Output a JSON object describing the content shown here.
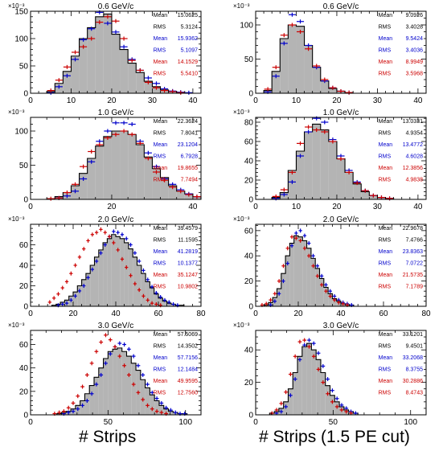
{
  "chart_data": [
    {
      "type": "histogram",
      "title": "0.6 GeV/c",
      "exponent": "×10⁻³",
      "xlim": [
        0,
        42
      ],
      "ylim": [
        0,
        150
      ],
      "xticks": [
        0,
        10,
        20,
        30,
        40
      ],
      "yticks": [
        0,
        50,
        100,
        150
      ],
      "binwidth": 2,
      "x": [
        1,
        3,
        5,
        7,
        9,
        11,
        13,
        15,
        17,
        19,
        21,
        23,
        25,
        27,
        29,
        31,
        33,
        35,
        37,
        39,
        41
      ],
      "hist": [
        0,
        0,
        3,
        18,
        40,
        68,
        100,
        120,
        140,
        145,
        108,
        80,
        55,
        38,
        22,
        12,
        6,
        3,
        1,
        0,
        0
      ],
      "blue": [
        0,
        0,
        1,
        12,
        32,
        62,
        98,
        118,
        148,
        128,
        112,
        85,
        62,
        42,
        28,
        18,
        8,
        4,
        2,
        1,
        0
      ],
      "red": [
        0,
        0,
        5,
        24,
        48,
        75,
        85,
        100,
        130,
        140,
        132,
        100,
        60,
        42,
        20,
        10,
        5,
        3,
        1,
        0,
        0
      ],
      "stats": [
        {
          "label": "Mean",
          "value": "15.0625",
          "color": "#000000"
        },
        {
          "label": "RMS",
          "value": "5.3124",
          "color": "#000000"
        },
        {
          "label": "Mean",
          "value": "15.9362",
          "color": "#0000cc"
        },
        {
          "label": "RMS",
          "value": "5.1097",
          "color": "#0000cc"
        },
        {
          "label": "Mean",
          "value": "14.1529",
          "color": "#cc0000"
        },
        {
          "label": "RMS",
          "value": "5.5410",
          "color": "#cc0000"
        }
      ]
    },
    {
      "type": "histogram",
      "title": "0.6 GeV/c",
      "exponent": "×10⁻³",
      "xlim": [
        0,
        42
      ],
      "ylim": [
        0,
        120
      ],
      "xticks": [
        0,
        10,
        20,
        30,
        40
      ],
      "yticks": [
        0,
        50,
        100
      ],
      "binwidth": 2,
      "x": [
        1,
        3,
        5,
        7,
        9,
        11,
        13,
        15,
        17,
        19,
        21,
        23,
        25,
        27,
        29,
        31,
        33,
        35,
        37,
        39,
        41
      ],
      "hist": [
        0,
        4,
        32,
        80,
        100,
        98,
        70,
        38,
        18,
        7,
        3,
        1,
        0,
        0,
        0,
        0,
        0,
        0,
        0,
        0,
        0
      ],
      "blue": [
        0,
        2,
        25,
        73,
        115,
        105,
        70,
        38,
        18,
        8,
        3,
        1,
        0,
        0,
        0,
        0,
        0,
        0,
        0,
        0,
        0
      ],
      "red": [
        0,
        6,
        38,
        85,
        100,
        90,
        65,
        40,
        20,
        8,
        3,
        1,
        0,
        0,
        0,
        0,
        0,
        0,
        0,
        0,
        0
      ],
      "stats": [
        {
          "label": "Mean",
          "value": "9.0926",
          "color": "#000000"
        },
        {
          "label": "RMS",
          "value": "3.4028",
          "color": "#000000"
        },
        {
          "label": "Mean",
          "value": "9.5424",
          "color": "#0000cc"
        },
        {
          "label": "RMS",
          "value": "3.4036",
          "color": "#0000cc"
        },
        {
          "label": "Mean",
          "value": "8.9949",
          "color": "#cc0000"
        },
        {
          "label": "RMS",
          "value": "3.5968",
          "color": "#cc0000"
        }
      ]
    },
    {
      "type": "histogram",
      "title": "1.0 GeV/c",
      "exponent": "×10⁻³",
      "xlim": [
        0,
        42
      ],
      "ylim": [
        0,
        120
      ],
      "xticks": [
        0,
        20,
        40
      ],
      "yticks": [
        0,
        50,
        100
      ],
      "binwidth": 2,
      "x": [
        1,
        3,
        5,
        7,
        9,
        11,
        13,
        15,
        17,
        19,
        21,
        23,
        25,
        27,
        29,
        31,
        33,
        35,
        37,
        39,
        41
      ],
      "hist": [
        0,
        0,
        1,
        4,
        10,
        20,
        38,
        60,
        78,
        92,
        100,
        100,
        95,
        80,
        62,
        45,
        32,
        20,
        12,
        8,
        4
      ],
      "blue": [
        0,
        0,
        0,
        2,
        5,
        12,
        30,
        55,
        85,
        100,
        112,
        112,
        110,
        85,
        68,
        48,
        30,
        22,
        14,
        8,
        4
      ],
      "red": [
        0,
        0,
        1,
        2,
        10,
        22,
        48,
        70,
        80,
        90,
        95,
        100,
        95,
        82,
        60,
        40,
        28,
        18,
        12,
        7,
        4
      ],
      "stats": [
        {
          "label": "Mean",
          "value": "22.3624",
          "color": "#000000"
        },
        {
          "label": "RMS",
          "value": "7.8041",
          "color": "#000000"
        },
        {
          "label": "Mean",
          "value": "23.1204",
          "color": "#0000cc"
        },
        {
          "label": "RMS",
          "value": "6.7928",
          "color": "#0000cc"
        },
        {
          "label": "Mean",
          "value": "19.8655",
          "color": "#cc0000"
        },
        {
          "label": "RMS",
          "value": "7.7494",
          "color": "#cc0000"
        }
      ]
    },
    {
      "type": "histogram",
      "title": "1.0 GeV/c",
      "exponent": "×10⁻³",
      "xlim": [
        0,
        42
      ],
      "ylim": [
        0,
        85
      ],
      "xticks": [
        0,
        10,
        20,
        30,
        40
      ],
      "yticks": [
        0,
        20,
        40,
        60,
        80
      ],
      "binwidth": 2,
      "x": [
        1,
        3,
        5,
        7,
        9,
        11,
        13,
        15,
        17,
        19,
        21,
        23,
        25,
        27,
        29,
        31,
        33,
        35,
        37,
        39,
        41
      ],
      "hist": [
        0,
        0,
        2,
        7,
        30,
        50,
        70,
        78,
        72,
        60,
        42,
        28,
        16,
        8,
        4,
        2,
        1,
        0,
        0,
        0,
        0
      ],
      "blue": [
        0,
        0,
        1,
        5,
        18,
        45,
        70,
        84,
        80,
        62,
        45,
        30,
        18,
        9,
        4,
        2,
        1,
        0,
        0,
        0,
        0
      ],
      "red": [
        0,
        0,
        3,
        10,
        28,
        58,
        75,
        72,
        70,
        60,
        42,
        28,
        17,
        9,
        4,
        2,
        1,
        0,
        0,
        0,
        0
      ],
      "stats": [
        {
          "label": "Mean",
          "value": "13.0331",
          "color": "#000000"
        },
        {
          "label": "RMS",
          "value": "4.9354",
          "color": "#000000"
        },
        {
          "label": "Mean",
          "value": "13.4772",
          "color": "#0000cc"
        },
        {
          "label": "RMS",
          "value": "4.6028",
          "color": "#0000cc"
        },
        {
          "label": "Mean",
          "value": "12.3856",
          "color": "#cc0000"
        },
        {
          "label": "RMS",
          "value": "4.9838",
          "color": "#cc0000"
        }
      ]
    },
    {
      "type": "histogram",
      "title": "2.0 GeV/c",
      "exponent": "×10⁻³",
      "xlim": [
        0,
        80
      ],
      "ylim": [
        0,
        80
      ],
      "xticks": [
        0,
        20,
        40,
        60,
        80
      ],
      "yticks": [
        0,
        20,
        40,
        60
      ],
      "binwidth": 2,
      "x": [
        9,
        11,
        13,
        15,
        17,
        19,
        21,
        23,
        25,
        27,
        29,
        31,
        33,
        35,
        37,
        39,
        41,
        43,
        45,
        47,
        49,
        51,
        53,
        55,
        57,
        59,
        61,
        63,
        65,
        67,
        69,
        71,
        73,
        75,
        77,
        79
      ],
      "hist": [
        0,
        1,
        2,
        4,
        6,
        10,
        14,
        20,
        26,
        32,
        40,
        48,
        55,
        62,
        66,
        70,
        68,
        66,
        62,
        56,
        48,
        40,
        32,
        24,
        18,
        12,
        8,
        5,
        3,
        2,
        1,
        1,
        0,
        0,
        0,
        0
      ],
      "blue": [
        0,
        0,
        1,
        2,
        3,
        6,
        10,
        15,
        20,
        28,
        36,
        44,
        52,
        60,
        68,
        73,
        72,
        70,
        66,
        60,
        52,
        44,
        35,
        26,
        19,
        13,
        9,
        6,
        4,
        2,
        1,
        0,
        0,
        0,
        0,
        0
      ],
      "red": [
        4,
        8,
        12,
        18,
        24,
        32,
        40,
        48,
        56,
        64,
        70,
        72,
        75,
        72,
        68,
        62,
        55,
        46,
        38,
        30,
        22,
        16,
        10,
        6,
        3,
        2,
        1,
        0,
        0,
        0,
        0,
        0,
        0,
        0,
        0,
        0
      ],
      "stats": [
        {
          "label": "Mean",
          "value": "39.4579",
          "color": "#000000"
        },
        {
          "label": "RMS",
          "value": "11.1595",
          "color": "#000000"
        },
        {
          "label": "Mean",
          "value": "41.2819",
          "color": "#0000cc"
        },
        {
          "label": "RMS",
          "value": "10.1377",
          "color": "#0000cc"
        },
        {
          "label": "Mean",
          "value": "35.1247",
          "color": "#cc0000"
        },
        {
          "label": "RMS",
          "value": "10.9802",
          "color": "#cc0000"
        }
      ]
    },
    {
      "type": "histogram",
      "title": "2.0 GeV/c",
      "exponent": "×10⁻³",
      "xlim": [
        0,
        80
      ],
      "ylim": [
        0,
        65
      ],
      "xticks": [
        0,
        20,
        40,
        60,
        80
      ],
      "yticks": [
        0,
        20,
        40,
        60
      ],
      "binwidth": 2,
      "x": [
        3,
        5,
        7,
        9,
        11,
        13,
        15,
        17,
        19,
        21,
        23,
        25,
        27,
        29,
        31,
        33,
        35,
        37,
        39,
        41,
        43,
        45,
        47,
        49,
        51,
        53,
        55
      ],
      "hist": [
        0,
        1,
        3,
        7,
        14,
        26,
        40,
        50,
        56,
        55,
        52,
        46,
        38,
        30,
        22,
        15,
        10,
        6,
        4,
        2,
        1,
        1,
        0,
        0,
        0,
        0,
        0
      ],
      "blue": [
        0,
        0,
        1,
        4,
        10,
        20,
        34,
        48,
        58,
        60,
        56,
        50,
        40,
        32,
        24,
        17,
        12,
        8,
        5,
        3,
        2,
        1,
        0,
        0,
        0,
        0,
        0
      ],
      "red": [
        1,
        2,
        5,
        10,
        20,
        32,
        46,
        55,
        54,
        52,
        46,
        40,
        32,
        24,
        17,
        12,
        8,
        5,
        3,
        2,
        1,
        0,
        0,
        0,
        0,
        0,
        0
      ],
      "stats": [
        {
          "label": "Mean",
          "value": "22.9678",
          "color": "#000000"
        },
        {
          "label": "RMS",
          "value": "7.4766",
          "color": "#000000"
        },
        {
          "label": "Mean",
          "value": "23.8363",
          "color": "#0000cc"
        },
        {
          "label": "RMS",
          "value": "7.0722",
          "color": "#0000cc"
        },
        {
          "label": "Mean",
          "value": "21.5735",
          "color": "#cc0000"
        },
        {
          "label": "RMS",
          "value": "7.1789",
          "color": "#cc0000"
        }
      ]
    },
    {
      "type": "histogram",
      "title": "3.0 GeV/c",
      "exponent": "×10⁻³",
      "xlim": [
        0,
        110
      ],
      "ylim": [
        0,
        72
      ],
      "xticks": [
        0,
        50,
        100
      ],
      "yticks": [
        0,
        20,
        40,
        60
      ],
      "binwidth": 3,
      "x": [
        15.5,
        18.5,
        21.5,
        24.5,
        27.5,
        30.5,
        33.5,
        36.5,
        39.5,
        42.5,
        45.5,
        48.5,
        51.5,
        54.5,
        57.5,
        60.5,
        63.5,
        66.5,
        69.5,
        72.5,
        75.5,
        78.5,
        81.5,
        84.5,
        87.5,
        90.5,
        93.5,
        96.5,
        99.5,
        102.5,
        105.5
      ],
      "hist": [
        0,
        1,
        2,
        3,
        5,
        8,
        12,
        18,
        25,
        32,
        40,
        48,
        54,
        56,
        57,
        54,
        50,
        44,
        38,
        30,
        23,
        17,
        12,
        8,
        5,
        3,
        2,
        1,
        1,
        0,
        0
      ],
      "blue": [
        0,
        0,
        1,
        2,
        3,
        5,
        8,
        12,
        18,
        26,
        34,
        44,
        52,
        58,
        61,
        60,
        56,
        50,
        42,
        34,
        26,
        19,
        14,
        10,
        6,
        4,
        2,
        1,
        1,
        0,
        0
      ],
      "red": [
        1,
        2,
        3,
        6,
        10,
        16,
        24,
        34,
        44,
        54,
        62,
        68,
        64,
        58,
        50,
        42,
        34,
        26,
        19,
        13,
        8,
        5,
        3,
        2,
        1,
        0,
        0,
        0,
        0,
        0,
        0
      ],
      "stats": [
        {
          "label": "Mean",
          "value": "57.5069",
          "color": "#000000"
        },
        {
          "label": "RMS",
          "value": "14.3502",
          "color": "#000000"
        },
        {
          "label": "Mean",
          "value": "57.7156",
          "color": "#0000cc"
        },
        {
          "label": "RMS",
          "value": "12.1484",
          "color": "#0000cc"
        },
        {
          "label": "Mean",
          "value": "49.9595",
          "color": "#cc0000"
        },
        {
          "label": "RMS",
          "value": "12.7560",
          "color": "#cc0000"
        }
      ]
    },
    {
      "type": "histogram",
      "title": "3.0 GeV/c",
      "exponent": "×10⁻³",
      "xlim": [
        0,
        110
      ],
      "ylim": [
        0,
        52
      ],
      "xticks": [
        0,
        50,
        100
      ],
      "yticks": [
        0,
        20,
        40
      ],
      "binwidth": 3,
      "x": [
        7.5,
        10.5,
        13.5,
        16.5,
        19.5,
        22.5,
        25.5,
        28.5,
        31.5,
        34.5,
        37.5,
        40.5,
        43.5,
        46.5,
        49.5,
        52.5,
        55.5,
        58.5,
        61.5,
        64.5,
        67.5,
        70.5,
        73.5,
        76.5
      ],
      "hist": [
        0,
        1,
        2,
        4,
        8,
        16,
        26,
        36,
        42,
        44,
        40,
        34,
        26,
        18,
        12,
        8,
        5,
        3,
        2,
        1,
        0,
        0,
        0,
        0
      ],
      "blue": [
        0,
        0,
        1,
        2,
        5,
        12,
        22,
        34,
        43,
        46,
        44,
        38,
        30,
        22,
        15,
        10,
        6,
        4,
        2,
        1,
        0,
        0,
        0,
        0
      ],
      "red": [
        0,
        1,
        3,
        7,
        14,
        25,
        36,
        45,
        46,
        42,
        36,
        28,
        20,
        13,
        8,
        5,
        3,
        2,
        1,
        0,
        0,
        0,
        0,
        0
      ],
      "stats": [
        {
          "label": "Mean",
          "value": "33.1201",
          "color": "#000000"
        },
        {
          "label": "RMS",
          "value": "9.4501",
          "color": "#000000"
        },
        {
          "label": "Mean",
          "value": "33.2068",
          "color": "#0000cc"
        },
        {
          "label": "RMS",
          "value": "8.3755",
          "color": "#0000cc"
        },
        {
          "label": "Mean",
          "value": "30.2886",
          "color": "#cc0000"
        },
        {
          "label": "RMS",
          "value": "8.4743",
          "color": "#cc0000"
        }
      ]
    }
  ],
  "xlabels": {
    "left": "# Strips",
    "right": "# Strips (1.5 PE cut)"
  },
  "colors": {
    "hist_fill": "#b4b4b4",
    "blue": "#0000cc",
    "red": "#cc0000",
    "axis": "#000000"
  }
}
